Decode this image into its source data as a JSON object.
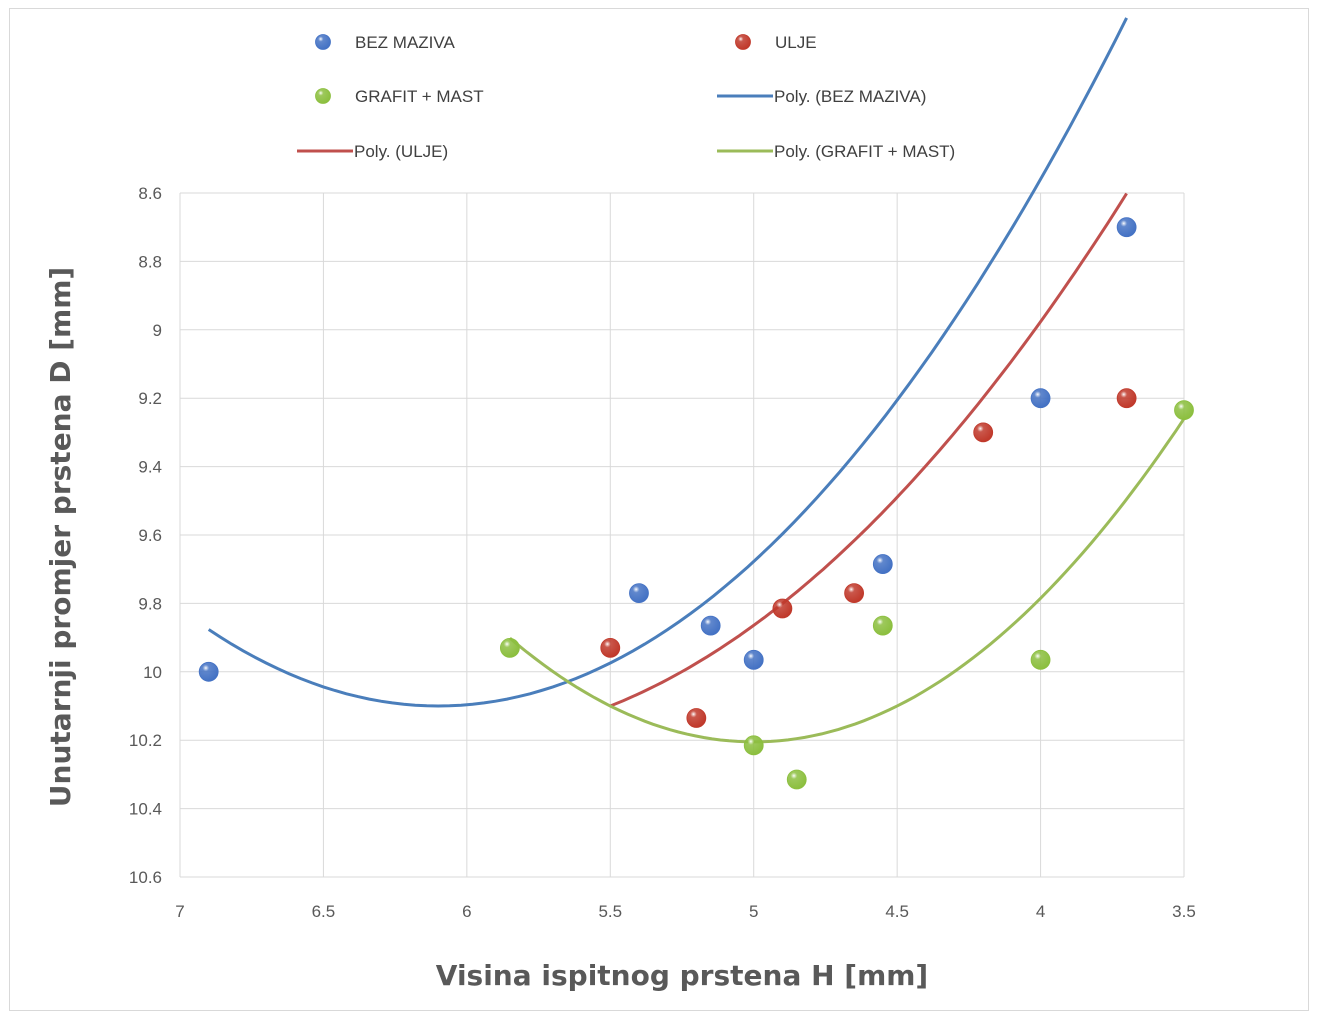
{
  "chart_data": {
    "type": "scatter",
    "xlabel": "Visina ispitnog prstena  H [mm]",
    "ylabel": "Unutarnji promjer prstena D [mm]",
    "xlim": [
      7,
      3.5
    ],
    "ylim": [
      8.6,
      10.6
    ],
    "x_reversed": true,
    "y_reversed": true,
    "x_ticks": [
      "7",
      "6.5",
      "6",
      "5.5",
      "5",
      "4.5",
      "4",
      "3.5"
    ],
    "y_ticks": [
      "8.6",
      "8.8",
      "9",
      "9.2",
      "9.4",
      "9.6",
      "9.8",
      "10",
      "10.2",
      "10.4",
      "10.6"
    ],
    "grid": true,
    "legend_position": "top",
    "series": [
      {
        "name": "BEZ MAZIVA",
        "color": "#4472c4",
        "points": [
          [
            6.9,
            10.0
          ],
          [
            5.4,
            9.77
          ],
          [
            5.15,
            9.865
          ],
          [
            5.0,
            9.965
          ],
          [
            4.55,
            9.685
          ],
          [
            4.0,
            9.2
          ],
          [
            3.7,
            8.7
          ]
        ]
      },
      {
        "name": "ULJE",
        "color": "#c0392b",
        "points": [
          [
            5.5,
            9.93
          ],
          [
            5.2,
            10.135
          ],
          [
            4.9,
            9.815
          ],
          [
            4.65,
            9.77
          ],
          [
            4.2,
            9.3
          ],
          [
            3.7,
            9.2
          ]
        ]
      },
      {
        "name": "GRAFIT + MAST",
        "color": "#8cbf3f",
        "points": [
          [
            5.85,
            9.93
          ],
          [
            5.0,
            10.215
          ],
          [
            4.85,
            10.315
          ],
          [
            4.55,
            9.865
          ],
          [
            4.0,
            9.965
          ],
          [
            3.5,
            9.235
          ]
        ]
      }
    ],
    "trendlines": [
      {
        "name": "Poly. (BEZ MAZIVA)",
        "color": "#4a7ebb",
        "x_range": [
          6.9,
          3.7
        ],
        "coeffs": [
          1.2845,
          0.27,
          -0.11
        ]
      },
      {
        "name": "Poly. (ULJE)",
        "color": "#c0504d",
        "x_range": [
          5.5,
          3.7
        ],
        "coeffs": [
          1.4058,
          -0.41,
          -0.1
        ]
      },
      {
        "name": "Poly. (GRAFIT + MAST)",
        "color": "#9bbb59",
        "x_range": [
          5.85,
          3.5
        ],
        "coeffs": [
          1.8044,
          -1.46,
          0.0
        ]
      }
    ]
  },
  "legend": {
    "items": [
      {
        "label": "BEZ MAZIVA",
        "kind": "marker",
        "color": "#4472c4"
      },
      {
        "label": "ULJE",
        "kind": "marker",
        "color": "#c0392b"
      },
      {
        "label": "GRAFIT + MAST",
        "kind": "marker",
        "color": "#8cbf3f"
      },
      {
        "label": "Poly. (BEZ MAZIVA)",
        "kind": "line",
        "color": "#4a7ebb"
      },
      {
        "label": "Poly. (ULJE)",
        "kind": "line",
        "color": "#c0504d"
      },
      {
        "label": "Poly. (GRAFIT + MAST)",
        "kind": "line",
        "color": "#9bbb59"
      }
    ]
  }
}
